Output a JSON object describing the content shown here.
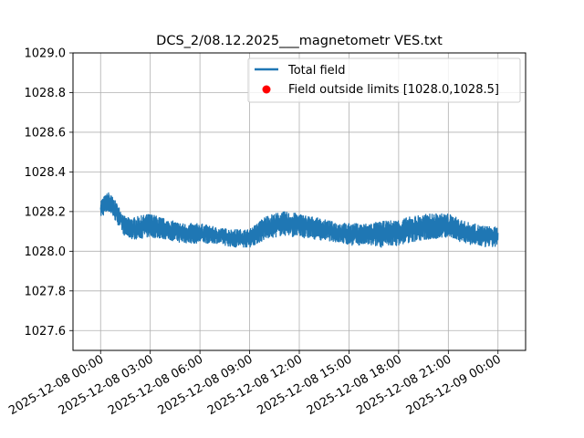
{
  "chart_data": {
    "type": "line",
    "title": "DCS_2/08.12.2025___magnetometr VES.txt",
    "xlabel": "",
    "ylabel": "",
    "ylim": [
      1027.5,
      1029.0
    ],
    "xlim": [
      "2025-12-07 22:20",
      "2025-12-09 01:40"
    ],
    "grid": true,
    "legend_position": "upper-right",
    "y_ticks": [
      1027.6,
      1027.8,
      1028.0,
      1028.2,
      1028.4,
      1028.6,
      1028.8,
      1029.0
    ],
    "y_tick_labels": [
      "1027.6",
      "1027.8",
      "1028.0",
      "1028.2",
      "1028.4",
      "1028.6",
      "1028.8",
      "1029.0"
    ],
    "x_ticks": [
      "2025-12-08 00:00",
      "2025-12-08 03:00",
      "2025-12-08 06:00",
      "2025-12-08 09:00",
      "2025-12-08 12:00",
      "2025-12-08 15:00",
      "2025-12-08 18:00",
      "2025-12-08 21:00",
      "2025-12-09 00:00"
    ],
    "x_tick_labels": [
      "2025-12-08 00:00",
      "2025-12-08 03:00",
      "2025-12-08 06:00",
      "2025-12-08 09:00",
      "2025-12-08 12:00",
      "2025-12-08 15:00",
      "2025-12-08 18:00",
      "2025-12-08 21:00",
      "2025-12-09 00:00"
    ],
    "colors": {
      "total_field": "#1f77b4",
      "outside_limits": "#ff0000"
    },
    "series": [
      {
        "name": "Total field",
        "style": "line",
        "x": [
          "2025-12-08 00:00",
          "2025-12-08 00:30",
          "2025-12-08 01:00",
          "2025-12-08 01:30",
          "2025-12-08 02:00",
          "2025-12-08 03:00",
          "2025-12-08 04:00",
          "2025-12-08 05:00",
          "2025-12-08 06:00",
          "2025-12-08 07:00",
          "2025-12-08 08:00",
          "2025-12-08 09:00",
          "2025-12-08 10:00",
          "2025-12-08 11:00",
          "2025-12-08 12:00",
          "2025-12-08 13:00",
          "2025-12-08 14:00",
          "2025-12-08 15:00",
          "2025-12-08 16:00",
          "2025-12-08 17:00",
          "2025-12-08 18:00",
          "2025-12-08 19:00",
          "2025-12-08 20:00",
          "2025-12-08 21:00",
          "2025-12-08 22:00",
          "2025-12-08 23:00",
          "2025-12-09 00:00"
        ],
        "y_min": [
          1028.17,
          1028.2,
          1028.14,
          1028.07,
          1028.06,
          1028.07,
          1028.06,
          1028.04,
          1028.04,
          1028.04,
          1028.02,
          1028.02,
          1028.06,
          1028.08,
          1028.07,
          1028.06,
          1028.05,
          1028.03,
          1028.03,
          1028.02,
          1028.03,
          1028.05,
          1028.06,
          1028.07,
          1028.04,
          1028.02,
          1028.02
        ],
        "y_max": [
          1028.26,
          1028.3,
          1028.24,
          1028.17,
          1028.17,
          1028.19,
          1028.16,
          1028.14,
          1028.14,
          1028.12,
          1028.11,
          1028.11,
          1028.18,
          1028.2,
          1028.19,
          1028.17,
          1028.15,
          1028.14,
          1028.14,
          1028.15,
          1028.16,
          1028.18,
          1028.19,
          1028.19,
          1028.15,
          1028.13,
          1028.12
        ]
      },
      {
        "name": "Field outside limits [1028.0,1028.5]",
        "style": "scatter",
        "x": [],
        "y": []
      }
    ]
  }
}
